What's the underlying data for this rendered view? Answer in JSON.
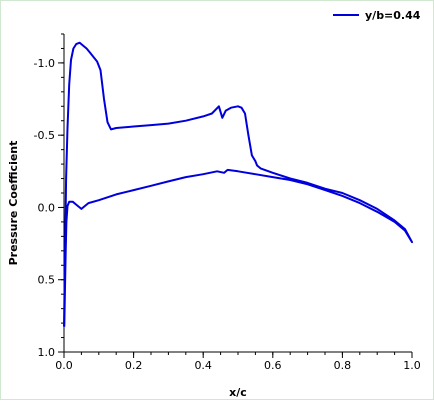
{
  "chart_data": {
    "type": "line",
    "title": "",
    "xlabel": "x/c",
    "ylabel": "Pressure Coefficient",
    "xlim": [
      0.0,
      1.0
    ],
    "ylim": [
      -1.2,
      1.0
    ],
    "y_inverted": true,
    "grid": false,
    "legend_position": "top-right",
    "x_ticks": [
      "0.0",
      "0.2",
      "0.4",
      "0.6",
      "0.8",
      "1.0"
    ],
    "x_tick_values": [
      0.0,
      0.2,
      0.4,
      0.6,
      0.8,
      1.0
    ],
    "y_ticks": [
      "-1.0",
      "-0.5",
      "0.0",
      "0.5",
      "1.0"
    ],
    "y_tick_values": [
      -1.0,
      -0.5,
      0.0,
      0.5,
      1.0
    ],
    "series": [
      {
        "name": "y/b=0.44",
        "color": "#0000dd",
        "x": [
          0.0,
          0.003,
          0.006,
          0.01,
          0.015,
          0.02,
          0.027,
          0.035,
          0.045,
          0.055,
          0.065,
          0.075,
          0.085,
          0.095,
          0.105,
          0.115,
          0.125,
          0.135,
          0.15,
          0.2,
          0.25,
          0.3,
          0.35,
          0.4,
          0.425,
          0.445,
          0.455,
          0.465,
          0.48,
          0.5,
          0.51,
          0.52,
          0.53,
          0.54,
          0.55,
          0.555,
          0.565,
          0.6,
          0.65,
          0.7,
          0.75,
          0.8,
          0.85,
          0.9,
          0.95,
          0.98,
          1.0,
          0.98,
          0.95,
          0.9,
          0.85,
          0.8,
          0.75,
          0.7,
          0.65,
          0.6,
          0.55,
          0.5,
          0.47,
          0.46,
          0.44,
          0.4,
          0.35,
          0.3,
          0.25,
          0.2,
          0.15,
          0.1,
          0.07,
          0.05,
          0.035,
          0.025,
          0.015,
          0.01,
          0.007,
          0.005,
          0.003,
          0.001
        ],
        "y": [
          0.82,
          0.35,
          -0.2,
          -0.55,
          -0.85,
          -1.02,
          -1.1,
          -1.13,
          -1.14,
          -1.12,
          -1.1,
          -1.07,
          -1.04,
          -1.01,
          -0.95,
          -0.75,
          -0.59,
          -0.54,
          -0.55,
          -0.56,
          -0.57,
          -0.58,
          -0.6,
          -0.63,
          -0.65,
          -0.7,
          -0.62,
          -0.67,
          -0.69,
          -0.7,
          -0.69,
          -0.65,
          -0.5,
          -0.36,
          -0.32,
          -0.29,
          -0.27,
          -0.24,
          -0.2,
          -0.17,
          -0.13,
          -0.1,
          -0.05,
          0.01,
          0.09,
          0.15,
          0.24,
          0.16,
          0.1,
          0.03,
          -0.03,
          -0.08,
          -0.12,
          -0.16,
          -0.19,
          -0.21,
          -0.23,
          -0.25,
          -0.26,
          -0.24,
          -0.25,
          -0.23,
          -0.21,
          -0.18,
          -0.15,
          -0.12,
          -0.09,
          -0.05,
          -0.03,
          0.01,
          -0.02,
          -0.04,
          -0.04,
          -0.01,
          0.1,
          0.3,
          0.55,
          0.82
        ]
      }
    ]
  }
}
